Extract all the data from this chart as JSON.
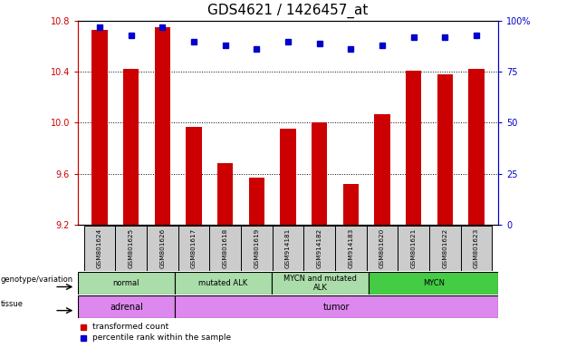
{
  "title": "GDS4621 / 1426457_at",
  "samples": [
    "GSM801624",
    "GSM801625",
    "GSM801626",
    "GSM801617",
    "GSM801618",
    "GSM801619",
    "GSM914181",
    "GSM914182",
    "GSM914183",
    "GSM801620",
    "GSM801621",
    "GSM801622",
    "GSM801623"
  ],
  "transformed_count": [
    10.73,
    10.42,
    10.75,
    9.97,
    9.68,
    9.57,
    9.95,
    10.0,
    9.52,
    10.07,
    10.41,
    10.38,
    10.42
  ],
  "percentile_rank": [
    97,
    93,
    97,
    90,
    88,
    86,
    90,
    89,
    86,
    88,
    92,
    92,
    93
  ],
  "ylim_left": [
    9.2,
    10.8
  ],
  "ylim_right": [
    0,
    100
  ],
  "yticks_left": [
    9.2,
    9.6,
    10.0,
    10.4,
    10.8
  ],
  "yticks_right": [
    0,
    25,
    50,
    75,
    100
  ],
  "bar_color": "#cc0000",
  "dot_color": "#0000cc",
  "bar_bottom": 9.2,
  "genotype_groups": [
    {
      "label": "normal",
      "start": 0,
      "end": 3
    },
    {
      "label": "mutated ALK",
      "start": 3,
      "end": 6
    },
    {
      "label": "MYCN and mutated\nALK",
      "start": 6,
      "end": 9
    },
    {
      "label": "MYCN",
      "start": 9,
      "end": 13
    }
  ],
  "tissue_groups": [
    {
      "label": "adrenal",
      "start": 0,
      "end": 3
    },
    {
      "label": "tumor",
      "start": 3,
      "end": 13
    }
  ],
  "legend_bar_label": "transformed count",
  "legend_dot_label": "percentile rank within the sample",
  "left_axis_color": "#cc0000",
  "right_axis_color": "#0000cc",
  "genotype_color_light": "#aaddaa",
  "genotype_color_dark": "#44cc44",
  "tissue_color": "#dd88ee",
  "sample_box_color": "#cccccc",
  "grid_linestyle": "dotted",
  "tick_label_fontsize": 7,
  "title_fontsize": 11,
  "bar_width": 0.5
}
